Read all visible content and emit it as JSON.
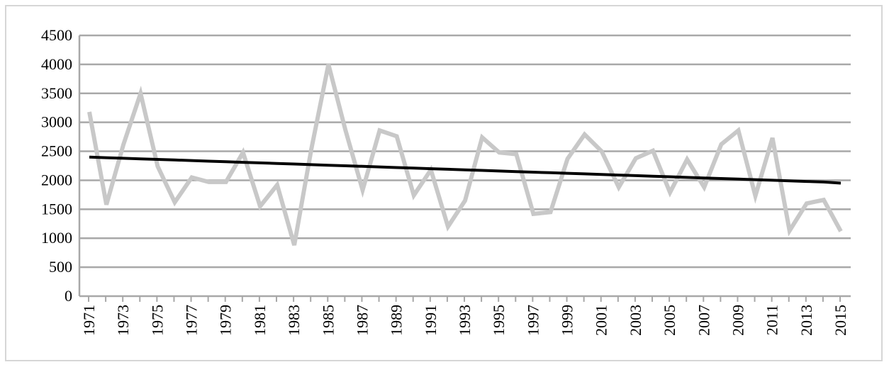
{
  "chart_data": {
    "type": "line",
    "title": "",
    "xlabel": "",
    "ylabel": "",
    "ylim": [
      0,
      4500
    ],
    "y_ticks": [
      0,
      500,
      1000,
      1500,
      2000,
      2500,
      3000,
      3500,
      4000,
      4500
    ],
    "x_tick_labels": [
      "1971",
      "1973",
      "1975",
      "1977",
      "1979",
      "1981",
      "1983",
      "1985",
      "1987",
      "1989",
      "1991",
      "1993",
      "1995",
      "1997",
      "1999",
      "2001",
      "2003",
      "2005",
      "2007",
      "2009",
      "2011",
      "2013",
      "2015"
    ],
    "grid": true,
    "legend": "none",
    "x": [
      1971,
      1972,
      1973,
      1974,
      1975,
      1976,
      1977,
      1978,
      1979,
      1980,
      1981,
      1982,
      1983,
      1984,
      1985,
      1986,
      1987,
      1988,
      1989,
      1990,
      1991,
      1992,
      1993,
      1994,
      1995,
      1996,
      1997,
      1998,
      1999,
      2000,
      2001,
      2002,
      2003,
      2004,
      2005,
      2006,
      2007,
      2008,
      2009,
      2010,
      2011,
      2012,
      2013,
      2014,
      2015
    ],
    "series": [
      {
        "style": "observed",
        "color": "#c8c8c8",
        "values": [
          3180,
          1580,
          2620,
          3500,
          2240,
          1620,
          2050,
          1970,
          1970,
          2480,
          1550,
          1920,
          880,
          2540,
          4000,
          2860,
          1830,
          2860,
          2760,
          1740,
          2180,
          1200,
          1650,
          2740,
          2480,
          2450,
          1420,
          1450,
          2370,
          2790,
          2500,
          1880,
          2380,
          2510,
          1790,
          2360,
          1880,
          2620,
          2860,
          1730,
          2730,
          1130,
          1600,
          1660,
          1120
        ]
      },
      {
        "style": "trend",
        "color": "#000000",
        "values": [
          2400,
          2390,
          2380,
          2370,
          2360,
          2350,
          2340,
          2330,
          2320,
          2310,
          2300,
          2290,
          2280,
          2270,
          2260,
          2250,
          2240,
          2230,
          2220,
          2210,
          2200,
          2190,
          2180,
          2170,
          2160,
          2150,
          2140,
          2130,
          2120,
          2110,
          2100,
          2090,
          2080,
          2070,
          2060,
          2050,
          2040,
          2030,
          2020,
          2010,
          2000,
          1990,
          1980,
          1970,
          1950
        ]
      }
    ]
  }
}
